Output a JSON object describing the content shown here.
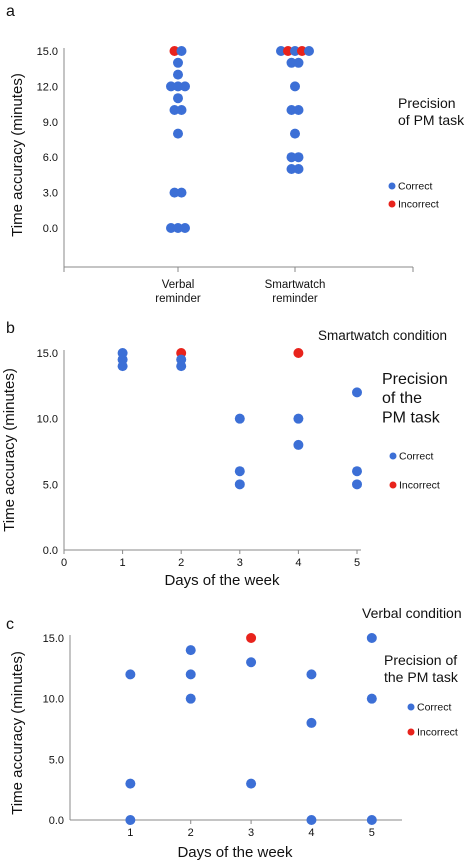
{
  "colors": {
    "correct": "#3c6fd6",
    "incorrect": "#e8231c",
    "axis": "#888888"
  },
  "chart_data": [
    {
      "panel": "a",
      "type": "scatter",
      "title": "",
      "xlabel": "",
      "ylabel": "Time accuracy (minutes)",
      "ylim": [
        0,
        15
      ],
      "yticks": [
        "0.0",
        "3.0",
        "6.0",
        "9.0",
        "12.0",
        "15.0"
      ],
      "categories": [
        "Verbal\nreminder",
        "Smartwatch\nreminder"
      ],
      "legend": {
        "title": "Precision\nof PM task",
        "items": [
          "Correct",
          "Incorrect"
        ],
        "placement": "right"
      },
      "points": [
        {
          "category": 0,
          "y": 15,
          "status": "incorrect"
        },
        {
          "category": 0,
          "y": 15,
          "status": "correct"
        },
        {
          "category": 0,
          "y": 14,
          "status": "correct"
        },
        {
          "category": 0,
          "y": 13,
          "status": "correct"
        },
        {
          "category": 0,
          "y": 12,
          "status": "correct"
        },
        {
          "category": 0,
          "y": 12,
          "status": "correct"
        },
        {
          "category": 0,
          "y": 12,
          "status": "correct"
        },
        {
          "category": 0,
          "y": 11,
          "status": "correct"
        },
        {
          "category": 0,
          "y": 10,
          "status": "correct"
        },
        {
          "category": 0,
          "y": 10,
          "status": "correct"
        },
        {
          "category": 0,
          "y": 8,
          "status": "correct"
        },
        {
          "category": 0,
          "y": 3,
          "status": "correct"
        },
        {
          "category": 0,
          "y": 3,
          "status": "correct"
        },
        {
          "category": 0,
          "y": 0,
          "status": "correct"
        },
        {
          "category": 0,
          "y": 0,
          "status": "correct"
        },
        {
          "category": 0,
          "y": 0,
          "status": "correct"
        },
        {
          "category": 1,
          "y": 15,
          "status": "correct"
        },
        {
          "category": 1,
          "y": 15,
          "status": "incorrect"
        },
        {
          "category": 1,
          "y": 15,
          "status": "correct"
        },
        {
          "category": 1,
          "y": 15,
          "status": "incorrect"
        },
        {
          "category": 1,
          "y": 15,
          "status": "correct"
        },
        {
          "category": 1,
          "y": 14,
          "status": "correct"
        },
        {
          "category": 1,
          "y": 14,
          "status": "correct"
        },
        {
          "category": 1,
          "y": 12,
          "status": "correct"
        },
        {
          "category": 1,
          "y": 10,
          "status": "correct"
        },
        {
          "category": 1,
          "y": 10,
          "status": "correct"
        },
        {
          "category": 1,
          "y": 8,
          "status": "correct"
        },
        {
          "category": 1,
          "y": 6,
          "status": "correct"
        },
        {
          "category": 1,
          "y": 6,
          "status": "correct"
        },
        {
          "category": 1,
          "y": 5,
          "status": "correct"
        },
        {
          "category": 1,
          "y": 5,
          "status": "correct"
        }
      ]
    },
    {
      "panel": "b",
      "type": "scatter",
      "title": "Smartwatch condition",
      "xlabel": "Days of the week",
      "ylabel": "Time accuracy (minutes)",
      "xlim": [
        0,
        5
      ],
      "ylim": [
        0,
        15
      ],
      "xticks": [
        "0",
        "1",
        "2",
        "3",
        "4",
        "5"
      ],
      "yticks": [
        "0.0",
        "5.0",
        "10.0",
        "15.0"
      ],
      "legend": {
        "title": "Precision\nof the\nPM task",
        "items": [
          "Correct",
          "Incorrect"
        ],
        "placement": "right"
      },
      "points": [
        {
          "x": 1,
          "y": 15,
          "status": "correct"
        },
        {
          "x": 1,
          "y": 14.5,
          "status": "correct"
        },
        {
          "x": 1,
          "y": 14,
          "status": "correct"
        },
        {
          "x": 2,
          "y": 15,
          "status": "incorrect"
        },
        {
          "x": 2,
          "y": 14.5,
          "status": "correct"
        },
        {
          "x": 2,
          "y": 14,
          "status": "correct"
        },
        {
          "x": 3,
          "y": 10,
          "status": "correct"
        },
        {
          "x": 3,
          "y": 6,
          "status": "correct"
        },
        {
          "x": 3,
          "y": 5,
          "status": "correct"
        },
        {
          "x": 4,
          "y": 15,
          "status": "incorrect"
        },
        {
          "x": 4,
          "y": 10,
          "status": "correct"
        },
        {
          "x": 4,
          "y": 8,
          "status": "correct"
        },
        {
          "x": 5,
          "y": 12,
          "status": "correct"
        },
        {
          "x": 5,
          "y": 6,
          "status": "correct"
        },
        {
          "x": 5,
          "y": 5,
          "status": "correct"
        }
      ]
    },
    {
      "panel": "c",
      "type": "scatter",
      "title": "Verbal condition",
      "xlabel": "Days of the week",
      "ylabel": "Time accuracy (minutes)",
      "xlim": [
        0,
        5.5
      ],
      "ylim": [
        0,
        15
      ],
      "xticks": [
        "1",
        "2",
        "3",
        "4",
        "5"
      ],
      "yticks": [
        "0.0",
        "5.0",
        "10.0",
        "15.0"
      ],
      "legend": {
        "title": "Precision of\nthe PM task",
        "items": [
          "Correct",
          "Incorrect"
        ],
        "placement": "right"
      },
      "points": [
        {
          "x": 1,
          "y": 12,
          "status": "correct"
        },
        {
          "x": 1,
          "y": 3,
          "status": "correct"
        },
        {
          "x": 1,
          "y": 0,
          "status": "correct"
        },
        {
          "x": 2,
          "y": 14,
          "status": "correct"
        },
        {
          "x": 2,
          "y": 12,
          "status": "correct"
        },
        {
          "x": 2,
          "y": 10,
          "status": "correct"
        },
        {
          "x": 3,
          "y": 15,
          "status": "incorrect"
        },
        {
          "x": 3,
          "y": 13,
          "status": "correct"
        },
        {
          "x": 3,
          "y": 3,
          "status": "correct"
        },
        {
          "x": 4,
          "y": 12,
          "status": "correct"
        },
        {
          "x": 4,
          "y": 8,
          "status": "correct"
        },
        {
          "x": 4,
          "y": 0,
          "status": "correct"
        },
        {
          "x": 5,
          "y": 15,
          "status": "correct"
        },
        {
          "x": 5,
          "y": 10,
          "status": "correct"
        },
        {
          "x": 5,
          "y": 0,
          "status": "correct"
        }
      ]
    }
  ]
}
